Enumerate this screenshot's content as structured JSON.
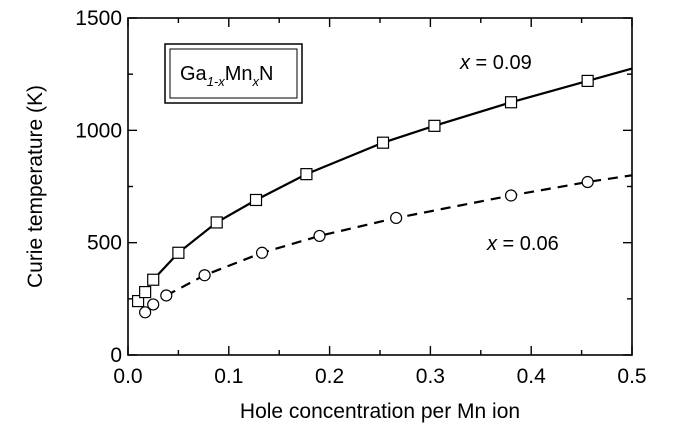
{
  "chart_data": {
    "type": "line",
    "xlabel": "Hole concentration per Mn ion",
    "ylabel": "Curie temperature (K)",
    "xlim": [
      0.0,
      0.5
    ],
    "ylim": [
      0,
      1500
    ],
    "x_ticks": [
      "0.0",
      "0.1",
      "0.2",
      "0.3",
      "0.4",
      "0.5"
    ],
    "y_ticks": [
      "0",
      "500",
      "1000",
      "1500"
    ],
    "grid": false,
    "legend_box": {
      "base1": "Ga",
      "sub1": "1-x",
      "base2": "Mn",
      "sub2": "x",
      "base3": "N"
    },
    "series": [
      {
        "name": "x = 0.09",
        "label_var": "x",
        "label_rest": " = 0.09",
        "line_style": "solid",
        "marker": "square",
        "points": [
          {
            "x": 0.01,
            "y": 240
          },
          {
            "x": 0.017,
            "y": 280
          },
          {
            "x": 0.025,
            "y": 335
          },
          {
            "x": 0.05,
            "y": 455
          },
          {
            "x": 0.088,
            "y": 590
          },
          {
            "x": 0.127,
            "y": 690
          },
          {
            "x": 0.177,
            "y": 805
          },
          {
            "x": 0.253,
            "y": 945
          },
          {
            "x": 0.304,
            "y": 1020
          },
          {
            "x": 0.38,
            "y": 1125
          },
          {
            "x": 0.456,
            "y": 1220
          }
        ],
        "curve": [
          {
            "x": 0.025,
            "y": 335
          },
          {
            "x": 0.05,
            "y": 455
          },
          {
            "x": 0.088,
            "y": 590
          },
          {
            "x": 0.127,
            "y": 690
          },
          {
            "x": 0.177,
            "y": 805
          },
          {
            "x": 0.253,
            "y": 945
          },
          {
            "x": 0.304,
            "y": 1020
          },
          {
            "x": 0.38,
            "y": 1125
          },
          {
            "x": 0.456,
            "y": 1220
          },
          {
            "x": 0.5,
            "y": 1275
          }
        ]
      },
      {
        "name": "x = 0.06",
        "label_var": "x",
        "label_rest": " = 0.06",
        "line_style": "dashed",
        "marker": "circle",
        "points": [
          {
            "x": 0.017,
            "y": 190
          },
          {
            "x": 0.025,
            "y": 225
          },
          {
            "x": 0.038,
            "y": 265
          },
          {
            "x": 0.076,
            "y": 355
          },
          {
            "x": 0.133,
            "y": 455
          },
          {
            "x": 0.19,
            "y": 530
          },
          {
            "x": 0.266,
            "y": 610
          },
          {
            "x": 0.38,
            "y": 710
          },
          {
            "x": 0.456,
            "y": 770
          }
        ],
        "curve": [
          {
            "x": 0.038,
            "y": 265
          },
          {
            "x": 0.076,
            "y": 355
          },
          {
            "x": 0.133,
            "y": 455
          },
          {
            "x": 0.19,
            "y": 530
          },
          {
            "x": 0.266,
            "y": 610
          },
          {
            "x": 0.38,
            "y": 710
          },
          {
            "x": 0.456,
            "y": 770
          },
          {
            "x": 0.5,
            "y": 800
          }
        ]
      }
    ]
  }
}
